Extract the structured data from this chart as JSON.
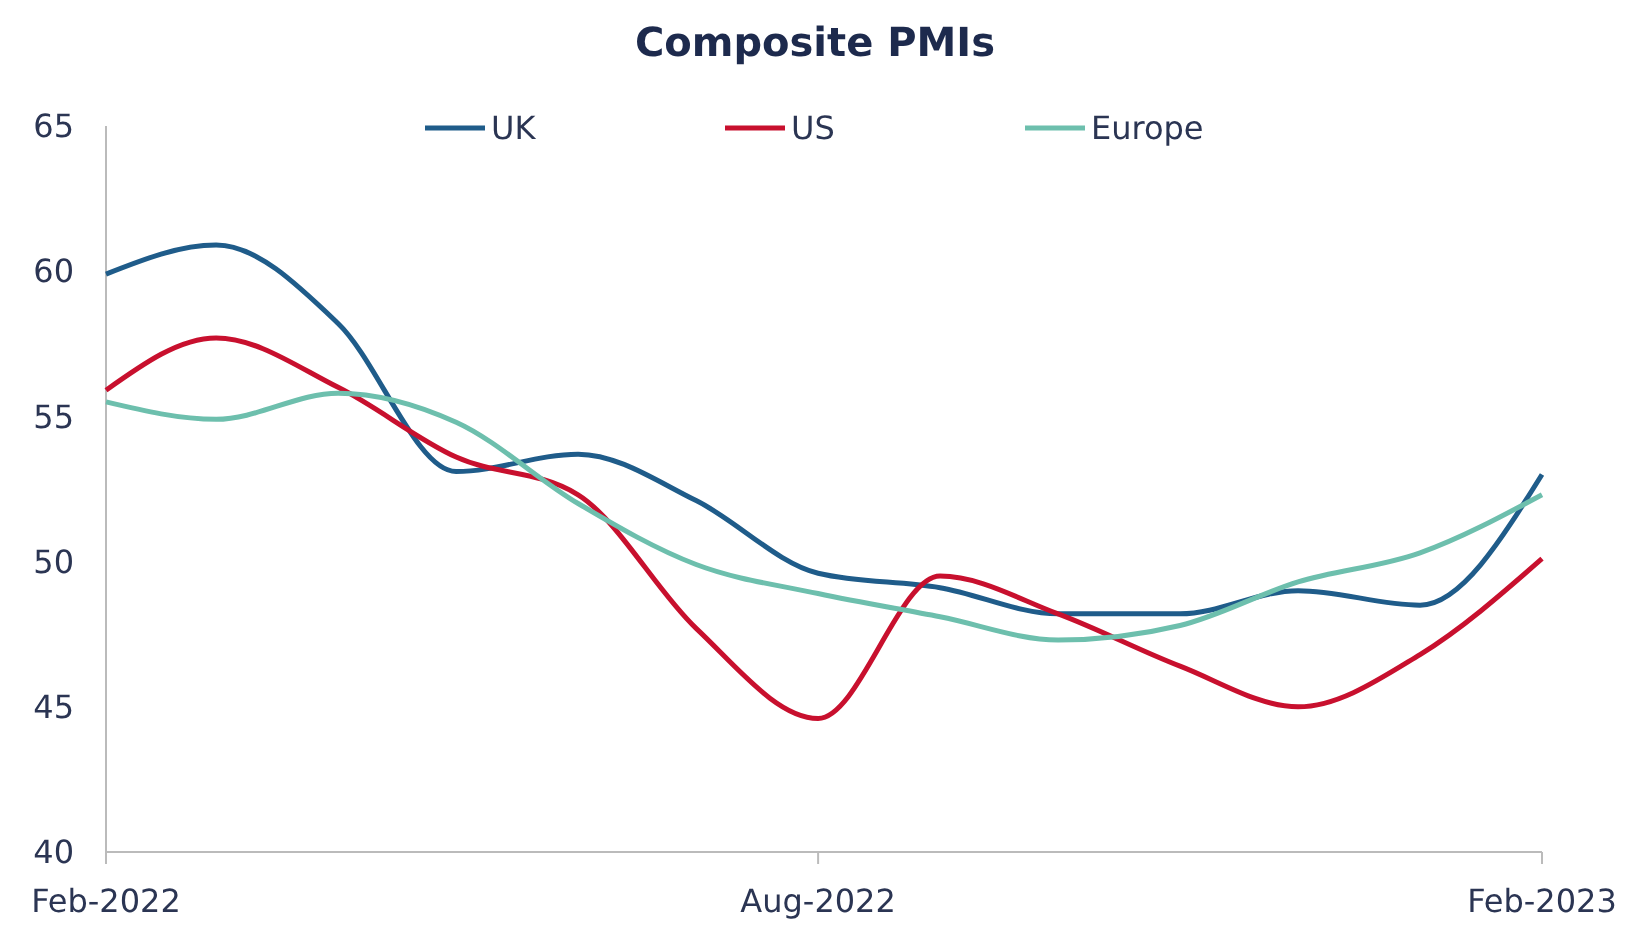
{
  "chart_data": {
    "type": "line",
    "title": "Composite PMIs",
    "x": [
      "2022-02",
      "2022-03",
      "2022-04",
      "2022-05",
      "2022-06",
      "2022-07",
      "2022-08",
      "2022-09",
      "2022-10",
      "2022-11",
      "2022-12",
      "2023-01",
      "2023-02"
    ],
    "series": [
      {
        "name": "UK",
        "color": "#1f5c8a",
        "values": [
          59.9,
          60.9,
          58.2,
          53.1,
          53.7,
          52.1,
          49.6,
          49.1,
          48.2,
          48.2,
          49.0,
          48.5,
          53.0
        ]
      },
      {
        "name": "US",
        "color": "#c8102e",
        "values": [
          55.9,
          57.7,
          56.0,
          53.6,
          52.3,
          47.7,
          44.6,
          49.5,
          48.2,
          46.4,
          45.0,
          46.8,
          50.1
        ]
      },
      {
        "name": "Europe",
        "color": "#6dbfad",
        "values": [
          55.5,
          54.9,
          55.8,
          54.8,
          52.0,
          49.9,
          48.9,
          48.1,
          47.3,
          47.8,
          49.3,
          50.3,
          52.3
        ]
      }
    ],
    "xlim": [
      "2022-02",
      "2023-02"
    ],
    "xticks": [
      {
        "value": "2022-02",
        "label": "Feb-2022"
      },
      {
        "value": "2022-08",
        "label": "Aug-2022"
      },
      {
        "value": "2023-02",
        "label": "Feb-2023"
      }
    ],
    "ylim": [
      40,
      65
    ],
    "yticks": [
      40,
      45,
      50,
      55,
      60,
      65
    ],
    "grid": false,
    "legend": "top",
    "marker": "none",
    "line_style": "solid"
  }
}
